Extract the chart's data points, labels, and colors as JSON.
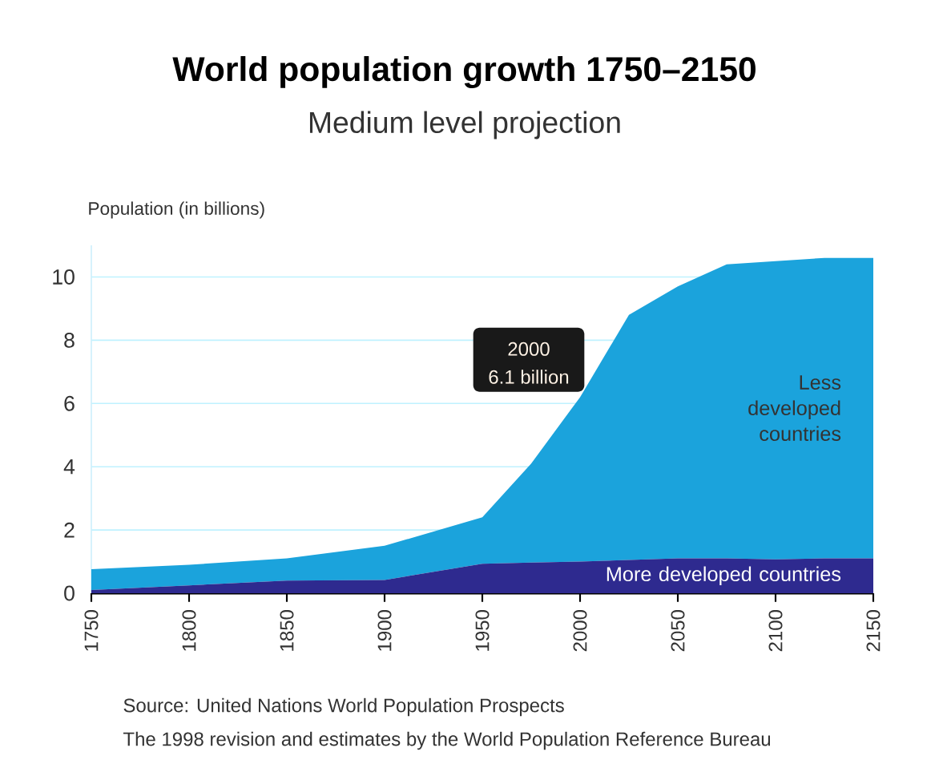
{
  "chart_data": {
    "type": "area",
    "title": "World population growth 1750–2150",
    "subtitle": "Medium level projection",
    "ylabel": "Population (in billions)",
    "x": [
      1750,
      1800,
      1850,
      1900,
      1950,
      1975,
      2000,
      2025,
      2050,
      2075,
      2100,
      2125,
      2150
    ],
    "stacked": true,
    "series": [
      {
        "name": "More developed countries",
        "color": "#2e2a8f",
        "values": [
          0.1,
          0.25,
          0.4,
          0.42,
          0.93,
          0.97,
          1.0,
          1.05,
          1.1,
          1.1,
          1.07,
          1.1,
          1.1
        ]
      },
      {
        "name": "Less developed countries",
        "color": "#1ba3dc",
        "values": [
          0.66,
          0.65,
          0.7,
          1.08,
          1.47,
          3.13,
          5.2,
          7.75,
          8.6,
          9.3,
          9.43,
          9.5,
          9.5
        ]
      }
    ],
    "xlim": [
      1750,
      2150
    ],
    "xticks": [
      1750,
      1800,
      1850,
      1900,
      1950,
      2000,
      2050,
      2100,
      2150
    ],
    "ylim": [
      0,
      11
    ],
    "yticks": [
      0,
      2,
      4,
      6,
      8,
      10
    ],
    "grid": "y",
    "legend": false,
    "annotations": [
      "2000",
      {
        "text": "6.1 billion",
        "x": 2000,
        "y": 6.1
      },
      "Source: United Nations World Population Prospects",
      "The 1998 revision and estimates by the World Population Reference Bureau"
    ]
  }
}
